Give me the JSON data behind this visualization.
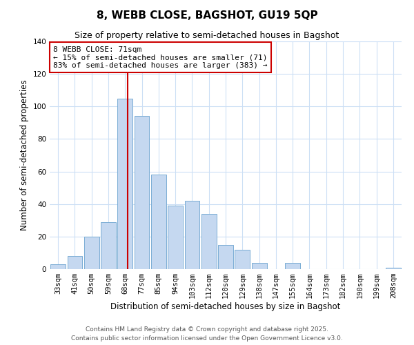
{
  "title": "8, WEBB CLOSE, BAGSHOT, GU19 5QP",
  "subtitle": "Size of property relative to semi-detached houses in Bagshot",
  "xlabel": "Distribution of semi-detached houses by size in Bagshot",
  "ylabel": "Number of semi-detached properties",
  "bar_labels": [
    "33sqm",
    "41sqm",
    "50sqm",
    "59sqm",
    "68sqm",
    "77sqm",
    "85sqm",
    "94sqm",
    "103sqm",
    "112sqm",
    "120sqm",
    "129sqm",
    "138sqm",
    "147sqm",
    "155sqm",
    "164sqm",
    "173sqm",
    "182sqm",
    "190sqm",
    "199sqm",
    "208sqm"
  ],
  "bar_values": [
    3,
    8,
    20,
    29,
    105,
    94,
    58,
    39,
    42,
    34,
    15,
    12,
    4,
    0,
    4,
    0,
    0,
    0,
    0,
    0,
    1
  ],
  "bar_color": "#c5d8f0",
  "bar_edgecolor": "#7aadd4",
  "vline_x_index": 4,
  "vline_x_offset": 0.15,
  "vline_color": "#cc0000",
  "annotation_title": "8 WEBB CLOSE: 71sqm",
  "annotation_line1": "← 15% of semi-detached houses are smaller (71)",
  "annotation_line2": "83% of semi-detached houses are larger (383) →",
  "annotation_box_edgecolor": "#cc0000",
  "ylim": [
    0,
    140
  ],
  "yticks": [
    0,
    20,
    40,
    60,
    80,
    100,
    120,
    140
  ],
  "footer1": "Contains HM Land Registry data © Crown copyright and database right 2025.",
  "footer2": "Contains public sector information licensed under the Open Government Licence v3.0.",
  "background_color": "#ffffff",
  "grid_color": "#ccdff5",
  "title_fontsize": 11,
  "subtitle_fontsize": 9,
  "axis_label_fontsize": 8.5,
  "tick_fontsize": 7.5,
  "annotation_fontsize": 8,
  "footer_fontsize": 6.5
}
